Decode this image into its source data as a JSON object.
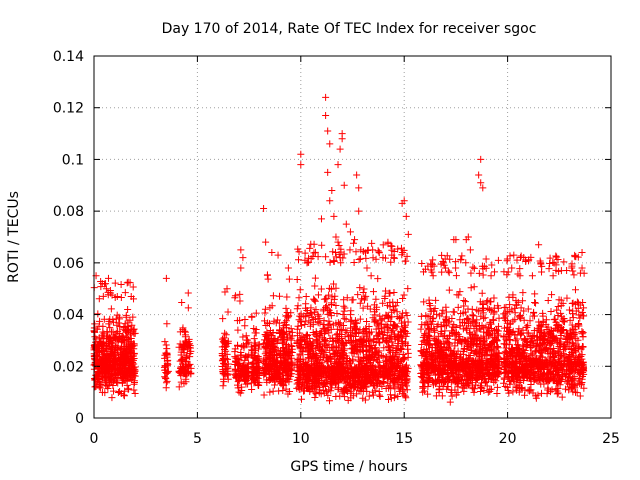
{
  "chart_data": {
    "type": "scatter",
    "title": "Day 170 of 2014, Rate Of TEC Index for receiver sgoc",
    "xlabel": "GPS time / hours",
    "ylabel": "ROTI / TECUs",
    "xlim": [
      0,
      25
    ],
    "ylim": [
      0,
      0.14
    ],
    "x_ticks": [
      "0",
      "5",
      "10",
      "15",
      "20",
      "25"
    ],
    "y_ticks": [
      "0",
      "0.02",
      "0.04",
      "0.06",
      "0.08",
      "0.1",
      "0.12",
      "0.14"
    ],
    "grid": true,
    "marker": "+",
    "color": "#ff0000",
    "segments": [
      {
        "x0": 0.0,
        "x1": 2.0,
        "ylow": 0.006,
        "ymed": 0.022,
        "yhigh": 0.045,
        "n": 650
      },
      {
        "x0": 3.4,
        "x1": 3.6,
        "ylow": 0.008,
        "ymed": 0.02,
        "yhigh": 0.036,
        "n": 35
      },
      {
        "x0": 4.1,
        "x1": 4.7,
        "ylow": 0.008,
        "ymed": 0.02,
        "yhigh": 0.042,
        "n": 100
      },
      {
        "x0": 6.2,
        "x1": 6.5,
        "ylow": 0.006,
        "ymed": 0.02,
        "yhigh": 0.045,
        "n": 60
      },
      {
        "x0": 6.8,
        "x1": 7.5,
        "ylow": 0.007,
        "ymed": 0.02,
        "yhigh": 0.045,
        "n": 120
      },
      {
        "x0": 7.6,
        "x1": 8.0,
        "ylow": 0.008,
        "ymed": 0.02,
        "yhigh": 0.045,
        "n": 90
      },
      {
        "x0": 8.2,
        "x1": 9.6,
        "ylow": 0.008,
        "ymed": 0.022,
        "yhigh": 0.05,
        "n": 380
      },
      {
        "x0": 9.8,
        "x1": 15.2,
        "ylow": 0.005,
        "ymed": 0.02,
        "yhigh": 0.06,
        "n": 1500
      },
      {
        "x0": 15.8,
        "x1": 19.6,
        "ylow": 0.005,
        "ymed": 0.022,
        "yhigh": 0.055,
        "n": 1000
      },
      {
        "x0": 19.8,
        "x1": 23.7,
        "ylow": 0.006,
        "ymed": 0.022,
        "yhigh": 0.055,
        "n": 1000
      }
    ],
    "outliers": [
      [
        0.1,
        0.055
      ],
      [
        0.4,
        0.052
      ],
      [
        0.6,
        0.05
      ],
      [
        0.7,
        0.054
      ],
      [
        1.8,
        0.047
      ],
      [
        3.5,
        0.054
      ],
      [
        7.1,
        0.065
      ],
      [
        7.2,
        0.062
      ],
      [
        7.1,
        0.058
      ],
      [
        8.3,
        0.068
      ],
      [
        8.2,
        0.081
      ],
      [
        8.6,
        0.064
      ],
      [
        8.9,
        0.063
      ],
      [
        9.4,
        0.058
      ],
      [
        10.0,
        0.102
      ],
      [
        10.0,
        0.098
      ],
      [
        10.2,
        0.061
      ],
      [
        10.3,
        0.06
      ],
      [
        11.0,
        0.077
      ],
      [
        11.2,
        0.124
      ],
      [
        11.2,
        0.117
      ],
      [
        11.3,
        0.111
      ],
      [
        11.4,
        0.106
      ],
      [
        11.3,
        0.095
      ],
      [
        11.5,
        0.088
      ],
      [
        11.4,
        0.084
      ],
      [
        11.6,
        0.078
      ],
      [
        11.7,
        0.07
      ],
      [
        11.8,
        0.068
      ],
      [
        11.9,
        0.062
      ],
      [
        11.8,
        0.098
      ],
      [
        12.0,
        0.11
      ],
      [
        12.0,
        0.108
      ],
      [
        11.9,
        0.104
      ],
      [
        12.1,
        0.09
      ],
      [
        12.2,
        0.075
      ],
      [
        12.4,
        0.072
      ],
      [
        12.6,
        0.069
      ],
      [
        12.7,
        0.094
      ],
      [
        12.8,
        0.089
      ],
      [
        12.8,
        0.08
      ],
      [
        12.9,
        0.065
      ],
      [
        13.2,
        0.058
      ],
      [
        13.4,
        0.055
      ],
      [
        14.4,
        0.063
      ],
      [
        14.5,
        0.062
      ],
      [
        14.9,
        0.083
      ],
      [
        15.0,
        0.084
      ],
      [
        15.1,
        0.078
      ],
      [
        15.2,
        0.071
      ],
      [
        16.4,
        0.055
      ],
      [
        16.9,
        0.06
      ],
      [
        17.0,
        0.058
      ],
      [
        17.4,
        0.069
      ],
      [
        17.5,
        0.069
      ],
      [
        18.0,
        0.069
      ],
      [
        18.1,
        0.07
      ],
      [
        18.2,
        0.065
      ],
      [
        18.7,
        0.1
      ],
      [
        18.6,
        0.094
      ],
      [
        18.7,
        0.091
      ],
      [
        18.8,
        0.089
      ],
      [
        19.2,
        0.055
      ],
      [
        20.2,
        0.058
      ],
      [
        20.3,
        0.063
      ],
      [
        20.6,
        0.055
      ],
      [
        21.2,
        0.055
      ],
      [
        21.5,
        0.067
      ],
      [
        21.6,
        0.06
      ],
      [
        22.2,
        0.055
      ],
      [
        23.1,
        0.058
      ],
      [
        23.6,
        0.064
      ],
      [
        23.6,
        0.058
      ],
      [
        23.7,
        0.056
      ]
    ]
  }
}
